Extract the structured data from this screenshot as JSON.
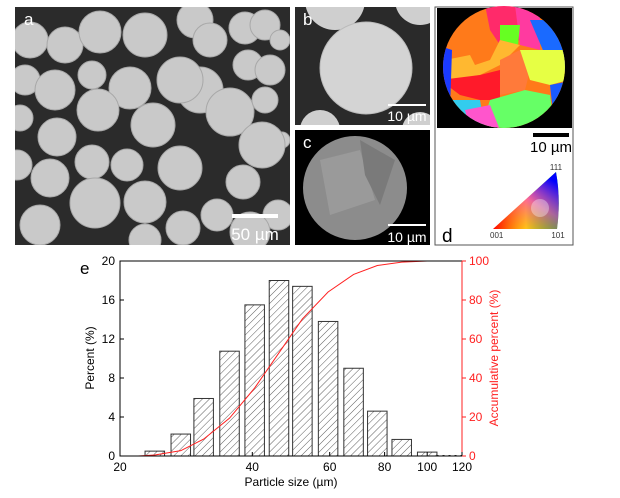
{
  "panels": {
    "a": {
      "label": "a",
      "scale_bar": "50 µm"
    },
    "b": {
      "label": "b",
      "scale_bar": "10 µm"
    },
    "c": {
      "label": "c",
      "scale_bar": "10 µm"
    },
    "d": {
      "label": "d",
      "scale_bar": "10 µm",
      "ipf_corners": [
        "001",
        "101",
        "111"
      ]
    },
    "e": {
      "label": "e"
    }
  },
  "chart_data": {
    "type": "bar",
    "xlabel": "Particle size (µm)",
    "ylabel": "Percent (%)",
    "y2label": "Accumulative percent (%)",
    "x_scale": "log",
    "xlim": [
      20,
      120
    ],
    "ylim": [
      0,
      20
    ],
    "y2lim": [
      0,
      100
    ],
    "xticks": [
      20,
      40,
      60,
      80,
      100,
      120
    ],
    "yticks": [
      0,
      4,
      8,
      12,
      16,
      20
    ],
    "y2ticks": [
      0,
      20,
      40,
      60,
      80,
      100
    ],
    "bin_centers": [
      24,
      27.5,
      31,
      35.5,
      40.5,
      46,
      52,
      59.5,
      68,
      77,
      87.5,
      100
    ],
    "values": [
      0.5,
      2.25,
      5.9,
      10.75,
      15.5,
      18.0,
      17.4,
      13.8,
      9.0,
      4.6,
      1.7,
      0.4
    ],
    "cumulative": {
      "x": [
        22,
        24,
        27.5,
        31,
        35.5,
        40.5,
        46,
        52,
        59.5,
        68,
        77,
        87.5,
        100
      ],
      "y": [
        0,
        0.5,
        2.75,
        8.65,
        19.4,
        34.9,
        52.9,
        70.3,
        84.1,
        93.1,
        97.7,
        99.4,
        100
      ]
    },
    "bar_style": "hatched",
    "colors": {
      "bars": "#333333",
      "cumulative": "#ff2020",
      "right_axis": "#ff2020"
    },
    "legend": "none",
    "grid": false
  }
}
